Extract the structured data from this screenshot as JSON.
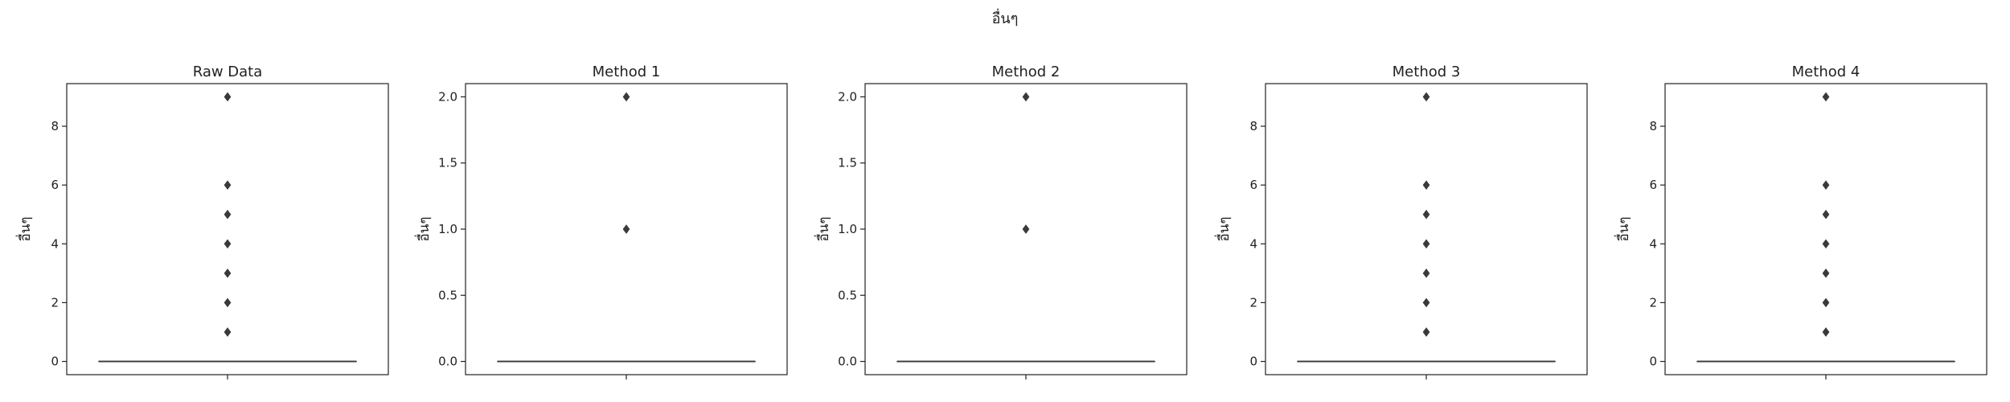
{
  "figure": {
    "suptitle": "อื่นๆ"
  },
  "chart_data": [
    {
      "type": "box",
      "title": "Raw Data",
      "xlabel": "",
      "ylabel": "อื่นๆ",
      "ylim": [
        -0.45,
        9.45
      ],
      "yticks": [
        0,
        2,
        4,
        6,
        8
      ],
      "ytick_labels": [
        "0",
        "2",
        "4",
        "6",
        "8"
      ],
      "box": {
        "q1": 0,
        "median": 0,
        "q3": 0,
        "whisker_low": 0,
        "whisker_high": 0
      },
      "outliers": [
        1,
        2,
        3,
        4,
        5,
        6,
        9
      ],
      "grid": false,
      "legend": "none"
    },
    {
      "type": "box",
      "title": "Method 1",
      "xlabel": "",
      "ylabel": "อื่นๆ",
      "ylim": [
        -0.1,
        2.1
      ],
      "yticks": [
        0.0,
        0.5,
        1.0,
        1.5,
        2.0
      ],
      "ytick_labels": [
        "0.0",
        "0.5",
        "1.0",
        "1.5",
        "2.0"
      ],
      "box": {
        "q1": 0,
        "median": 0,
        "q3": 0,
        "whisker_low": 0,
        "whisker_high": 0
      },
      "outliers": [
        1,
        2
      ],
      "grid": false,
      "legend": "none"
    },
    {
      "type": "box",
      "title": "Method 2",
      "xlabel": "",
      "ylabel": "อื่นๆ",
      "ylim": [
        -0.1,
        2.1
      ],
      "yticks": [
        0.0,
        0.5,
        1.0,
        1.5,
        2.0
      ],
      "ytick_labels": [
        "0.0",
        "0.5",
        "1.0",
        "1.5",
        "2.0"
      ],
      "box": {
        "q1": 0,
        "median": 0,
        "q3": 0,
        "whisker_low": 0,
        "whisker_high": 0
      },
      "outliers": [
        1,
        2
      ],
      "grid": false,
      "legend": "none"
    },
    {
      "type": "box",
      "title": "Method 3",
      "xlabel": "",
      "ylabel": "อื่นๆ",
      "ylim": [
        -0.45,
        9.45
      ],
      "yticks": [
        0,
        2,
        4,
        6,
        8
      ],
      "ytick_labels": [
        "0",
        "2",
        "4",
        "6",
        "8"
      ],
      "box": {
        "q1": 0,
        "median": 0,
        "q3": 0,
        "whisker_low": 0,
        "whisker_high": 0
      },
      "outliers": [
        1,
        2,
        3,
        4,
        5,
        6,
        9
      ],
      "grid": false,
      "legend": "none"
    },
    {
      "type": "box",
      "title": "Method 4",
      "xlabel": "",
      "ylabel": "อื่นๆ",
      "ylim": [
        -0.45,
        9.45
      ],
      "yticks": [
        0,
        2,
        4,
        6,
        8
      ],
      "ytick_labels": [
        "0",
        "2",
        "4",
        "6",
        "8"
      ],
      "box": {
        "q1": 0,
        "median": 0,
        "q3": 0,
        "whisker_low": 0,
        "whisker_high": 0
      },
      "outliers": [
        1,
        2,
        3,
        4,
        5,
        6,
        9
      ],
      "grid": false,
      "legend": "none"
    }
  ],
  "colors": {
    "axes": "#222222",
    "box_line": "#3a3a3a",
    "outlier": "#3a3a3a",
    "text": "#222222",
    "background": "#ffffff"
  }
}
